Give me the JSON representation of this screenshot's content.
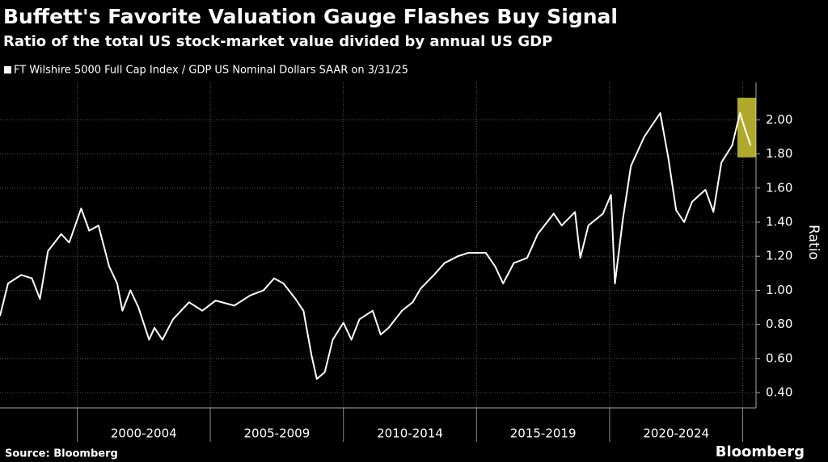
{
  "chart_data": {
    "type": "line",
    "title": "Buffett's Favorite Valuation Gauge Flashes Buy Signal",
    "subtitle": "Ratio of the total US stock-market value divided by annual US GDP",
    "y_label": "Ratio",
    "source": "Source: Bloomberg",
    "brand": "Bloomberg",
    "series": [
      {
        "name": "FT Wilshire 5000 Full Cap Index / GDP US Nominal Dollars SAAR on 3/31/25",
        "color": "#ffffff",
        "x": [
          1997.1,
          1997.4,
          1997.9,
          1998.3,
          1998.6,
          1998.9,
          1999.4,
          1999.7,
          2000.15,
          2000.45,
          2000.8,
          2001.2,
          2001.5,
          2001.7,
          2002.0,
          2002.3,
          2002.7,
          2002.9,
          2003.2,
          2003.6,
          2004.2,
          2004.7,
          2005.2,
          2005.9,
          2006.5,
          2007.0,
          2007.4,
          2007.75,
          2008.2,
          2008.5,
          2008.8,
          2009.0,
          2009.3,
          2009.6,
          2010.0,
          2010.3,
          2010.6,
          2011.1,
          2011.4,
          2011.7,
          2012.2,
          2012.6,
          2012.9,
          2013.4,
          2013.8,
          2014.3,
          2014.7,
          2015.35,
          2015.7,
          2016.0,
          2016.4,
          2016.9,
          2017.3,
          2017.9,
          2018.2,
          2018.7,
          2018.9,
          2019.2,
          2019.75,
          2020.05,
          2020.2,
          2020.5,
          2020.8,
          2021.3,
          2021.9,
          2022.2,
          2022.5,
          2022.8,
          2023.1,
          2023.6,
          2023.9,
          2024.2,
          2024.6,
          2024.9,
          2025.1,
          2025.3
        ],
        "values": [
          0.85,
          1.04,
          1.09,
          1.07,
          0.95,
          1.23,
          1.33,
          1.28,
          1.48,
          1.35,
          1.38,
          1.14,
          1.04,
          0.88,
          1.0,
          0.9,
          0.71,
          0.78,
          0.71,
          0.83,
          0.93,
          0.88,
          0.94,
          0.91,
          0.97,
          1.0,
          1.07,
          1.04,
          0.95,
          0.88,
          0.62,
          0.48,
          0.52,
          0.71,
          0.81,
          0.71,
          0.83,
          0.88,
          0.74,
          0.78,
          0.88,
          0.93,
          1.01,
          1.09,
          1.16,
          1.2,
          1.22,
          1.22,
          1.14,
          1.04,
          1.16,
          1.19,
          1.33,
          1.45,
          1.38,
          1.46,
          1.19,
          1.38,
          1.45,
          1.56,
          1.04,
          1.42,
          1.73,
          1.9,
          2.04,
          1.78,
          1.47,
          1.4,
          1.52,
          1.59,
          1.46,
          1.75,
          1.85,
          2.04,
          1.94,
          1.85
        ]
      }
    ],
    "xlim": [
      1997.1,
      2025.5
    ],
    "xticks": [
      2000,
      2005,
      2010,
      2015,
      2020,
      2025
    ],
    "x_periods": [
      {
        "label": "2000-2004",
        "start": 2000,
        "end": 2005
      },
      {
        "label": "2005-2009",
        "start": 2005,
        "end": 2010
      },
      {
        "label": "2010-2014",
        "start": 2010,
        "end": 2015
      },
      {
        "label": "2015-2019",
        "start": 2015,
        "end": 2020
      },
      {
        "label": "2020-2024",
        "start": 2020,
        "end": 2025
      }
    ],
    "ylim": [
      0.31,
      2.22
    ],
    "yticks": [
      {
        "value": 0.4,
        "label": "0.40"
      },
      {
        "value": 0.6,
        "label": "0.60"
      },
      {
        "value": 0.8,
        "label": "0.80"
      },
      {
        "value": 1.0,
        "label": "1.00"
      },
      {
        "value": 1.2,
        "label": "1.20"
      },
      {
        "value": 1.4,
        "label": "1.40"
      },
      {
        "value": 1.6,
        "label": "1.60"
      },
      {
        "value": 1.8,
        "label": "1.80"
      },
      {
        "value": 2.0,
        "label": "2.00"
      }
    ],
    "grid": true,
    "highlight": {
      "x": [
        2024.8,
        2025.5
      ],
      "y": [
        1.78,
        2.13
      ],
      "color": "#e8e23a"
    }
  }
}
